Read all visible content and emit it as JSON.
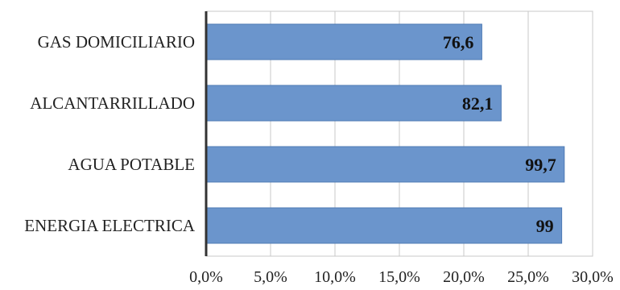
{
  "chart_data": {
    "type": "bar",
    "orientation": "horizontal",
    "title": "",
    "xlabel": "",
    "ylabel": "",
    "categories": [
      "GAS DOMICILIARIO",
      "ALCANTARRILLADO",
      "AGUA POTABLE",
      "ENERGIA ELECTRICA"
    ],
    "values": [
      21.4,
      22.9,
      27.8,
      27.6
    ],
    "data_labels": [
      "76,6",
      "82,1",
      "99,7",
      "99"
    ],
    "xlim": [
      0,
      30
    ],
    "xticks": [
      0,
      5,
      10,
      15,
      20,
      25,
      30
    ],
    "xtick_labels": [
      "0,0%",
      "5,0%",
      "10,0%",
      "15,0%",
      "20,0%",
      "25,0%",
      "30,0%"
    ],
    "grid": "vertical",
    "legend": "none",
    "colors": {
      "bar_fill": "#6b95cc",
      "bar_stroke": "#4f7bb5",
      "grid": "#c8c8c8",
      "axis": "#333333"
    }
  }
}
